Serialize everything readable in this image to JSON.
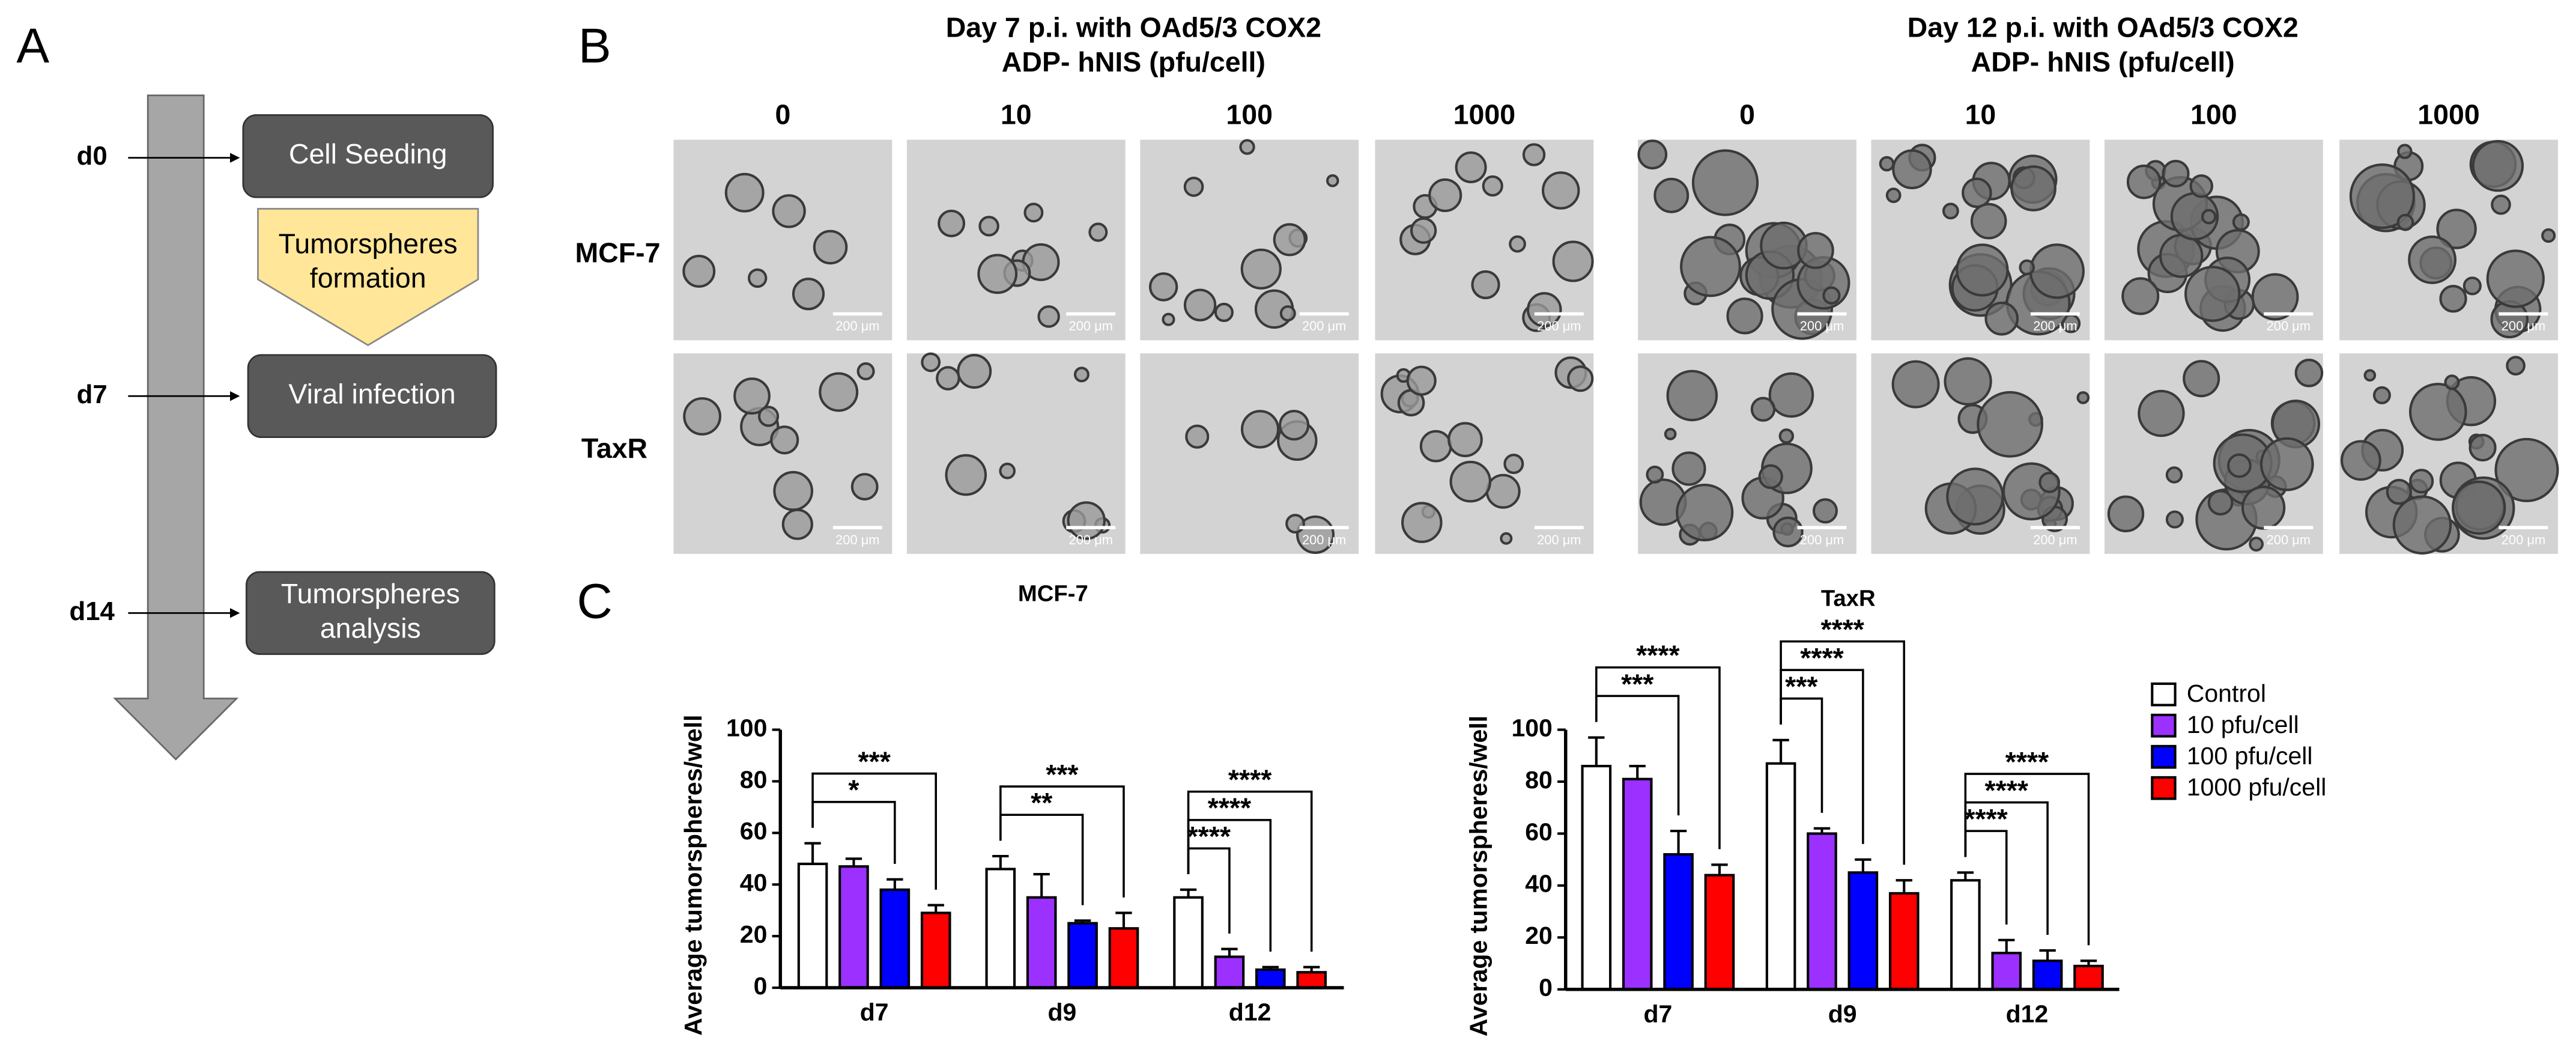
{
  "panel_labels": [
    "A",
    "B",
    "C"
  ],
  "timeline": {
    "days": [
      "d0",
      "d7",
      "d14"
    ],
    "steps": [
      {
        "lines": [
          "Cell Seeding"
        ]
      },
      {
        "lines": [
          "Tumorspheres",
          "formation"
        ]
      },
      {
        "lines": [
          "Viral infection"
        ]
      },
      {
        "lines": [
          "Tumorspheres",
          "analysis"
        ]
      }
    ]
  },
  "micrographs": {
    "groups": [
      {
        "title": [
          "Day 7 p.i. with OAd5/3 COX2",
          "ADP- hNIS (pfu/cell)"
        ],
        "doses": [
          "0",
          "10",
          "100",
          "1000"
        ]
      },
      {
        "title": [
          "Day 12 p.i. with OAd5/3 COX2",
          "ADP- hNIS (pfu/cell)"
        ],
        "doses": [
          "0",
          "10",
          "100",
          "1000"
        ]
      }
    ],
    "rows": [
      "MCF-7",
      "TaxR"
    ],
    "scale_bar": "200 μm"
  },
  "chart_data": [
    {
      "type": "bar",
      "title": "MCF-7",
      "y_label": "Average tumorspheres/well",
      "categories": [
        "d7",
        "d9",
        "d12"
      ],
      "ylim": [
        0,
        100
      ],
      "yticks": [
        0,
        20,
        40,
        60,
        80,
        100
      ],
      "legend": false,
      "series": [
        {
          "name": "Control",
          "color": "#ffffff",
          "values": [
            48,
            46,
            35
          ],
          "errors": [
            8,
            5,
            3
          ]
        },
        {
          "name": "10 pfu/cell",
          "color": "#9b30ff",
          "values": [
            47,
            35,
            12
          ],
          "errors": [
            3,
            9,
            3
          ]
        },
        {
          "name": "100 pfu/cell",
          "color": "#0000ff",
          "values": [
            38,
            25,
            7
          ],
          "errors": [
            4,
            1,
            1
          ]
        },
        {
          "name": "1000 pfu/cell",
          "color": "#ff0000",
          "values": [
            29,
            23,
            6
          ],
          "errors": [
            3,
            6,
            2
          ]
        }
      ],
      "comparisons": [
        {
          "category": "d7",
          "between": [
            "Control",
            "100 pfu/cell"
          ],
          "label": "*"
        },
        {
          "category": "d7",
          "between": [
            "Control",
            "1000 pfu/cell"
          ],
          "label": "***"
        },
        {
          "category": "d9",
          "between": [
            "Control",
            "100 pfu/cell"
          ],
          "label": "**"
        },
        {
          "category": "d9",
          "between": [
            "Control",
            "1000 pfu/cell"
          ],
          "label": "***"
        },
        {
          "category": "d12",
          "between": [
            "Control",
            "10 pfu/cell"
          ],
          "label": "****"
        },
        {
          "category": "d12",
          "between": [
            "Control",
            "100 pfu/cell"
          ],
          "label": "****"
        },
        {
          "category": "d12",
          "between": [
            "Control",
            "1000 pfu/cell"
          ],
          "label": "****"
        }
      ]
    },
    {
      "type": "bar",
      "title": "TaxR",
      "y_label": "Average tumorspheres/well",
      "categories": [
        "d7",
        "d9",
        "d12"
      ],
      "ylim": [
        0,
        100
      ],
      "yticks": [
        0,
        20,
        40,
        60,
        80,
        100
      ],
      "legend": true,
      "series": [
        {
          "name": "Control",
          "color": "#ffffff",
          "values": [
            86,
            87,
            42
          ],
          "errors": [
            11,
            9,
            3
          ]
        },
        {
          "name": "10 pfu/cell",
          "color": "#9b30ff",
          "values": [
            81,
            60,
            14
          ],
          "errors": [
            5,
            2,
            5
          ]
        },
        {
          "name": "100 pfu/cell",
          "color": "#0000ff",
          "values": [
            52,
            45,
            11
          ],
          "errors": [
            9,
            5,
            4
          ]
        },
        {
          "name": "1000 pfu/cell",
          "color": "#ff0000",
          "values": [
            44,
            37,
            9
          ],
          "errors": [
            4,
            5,
            2
          ]
        }
      ],
      "comparisons": [
        {
          "category": "d7",
          "between": [
            "Control",
            "100 pfu/cell"
          ],
          "label": "***"
        },
        {
          "category": "d7",
          "between": [
            "Control",
            "1000 pfu/cell"
          ],
          "label": "****"
        },
        {
          "category": "d9",
          "between": [
            "Control",
            "10 pfu/cell"
          ],
          "label": "***"
        },
        {
          "category": "d9",
          "between": [
            "Control",
            "100 pfu/cell"
          ],
          "label": "****"
        },
        {
          "category": "d9",
          "between": [
            "Control",
            "1000 pfu/cell"
          ],
          "label": "****"
        },
        {
          "category": "d12",
          "between": [
            "Control",
            "10 pfu/cell"
          ],
          "label": "****"
        },
        {
          "category": "d12",
          "between": [
            "Control",
            "100 pfu/cell"
          ],
          "label": "****"
        },
        {
          "category": "d12",
          "between": [
            "Control",
            "1000 pfu/cell"
          ],
          "label": "****"
        }
      ]
    }
  ]
}
